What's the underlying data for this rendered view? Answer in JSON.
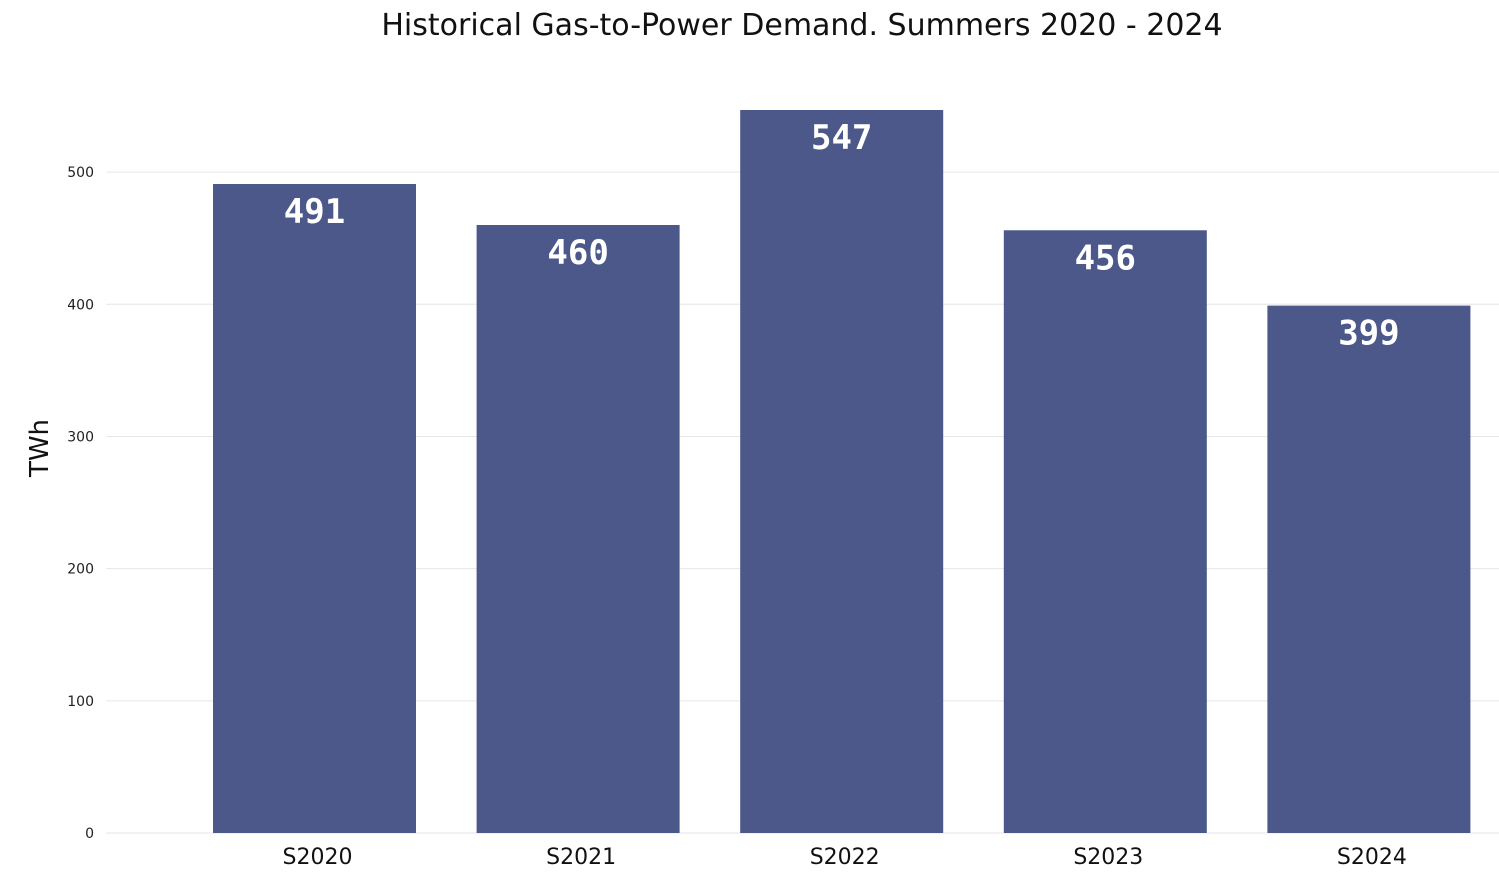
{
  "chart_data": {
    "type": "bar",
    "title": "Historical Gas-to-Power Demand. Summers 2020 - 2024",
    "xlabel": "",
    "ylabel": "TWh",
    "categories": [
      "S2020",
      "S2021",
      "S2022",
      "S2023",
      "S2024"
    ],
    "values": [
      491,
      460,
      547,
      456,
      399
    ],
    "data_labels": [
      "491",
      "460",
      "547",
      "456",
      "399"
    ],
    "ylim": [
      0,
      547
    ],
    "yticks": [
      0,
      100,
      200,
      300,
      400,
      500
    ],
    "grid": true,
    "legend": "none",
    "bar_color": "#4b5889"
  }
}
